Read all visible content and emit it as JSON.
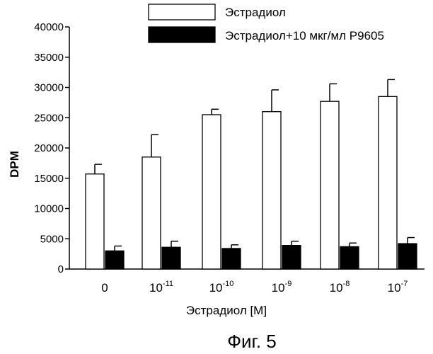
{
  "chart_data": {
    "type": "bar",
    "categories": [
      {
        "base": "0",
        "exp": ""
      },
      {
        "base": "10",
        "exp": "-11"
      },
      {
        "base": "10",
        "exp": "-10"
      },
      {
        "base": "10",
        "exp": "-9"
      },
      {
        "base": "10",
        "exp": "-8"
      },
      {
        "base": "10",
        "exp": "-7"
      }
    ],
    "series": [
      {
        "name": "Эстрадиол",
        "fill": "#ffffff",
        "values": [
          15700,
          18500,
          25500,
          26000,
          27700,
          28500
        ],
        "errors": [
          1600,
          3700,
          900,
          3600,
          2900,
          2800
        ]
      },
      {
        "name": "Эстрадиол+10 мкг/мл P9605",
        "fill": "#000000",
        "values": [
          3000,
          3600,
          3400,
          3900,
          3700,
          4200
        ],
        "errors": [
          800,
          1000,
          600,
          700,
          600,
          1000
        ]
      }
    ],
    "xlabel": "Эстрадиол [M]",
    "ylabel": "DPM",
    "ylim": [
      0,
      40000
    ],
    "yticks": [
      "0",
      "5000",
      "10000",
      "15000",
      "20000",
      "25000",
      "30000",
      "35000",
      "40000"
    ],
    "grid": false,
    "legend": "top-right"
  },
  "caption": "Фиг. 5"
}
